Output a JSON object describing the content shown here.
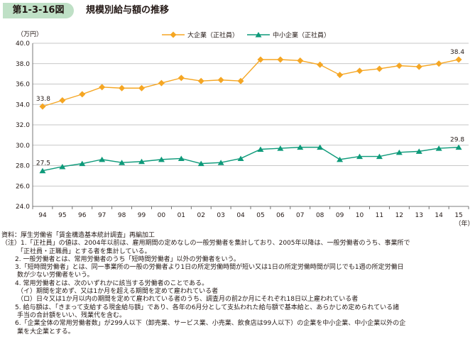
{
  "figure": {
    "number": "第1-3-16図",
    "title": "規模別給与額の推移"
  },
  "colors": {
    "large": "#f5a623",
    "small": "#0e9a7a",
    "grid": "#b5b5b5",
    "tag_bg": "#bfe0c6"
  },
  "chart_data": {
    "type": "line",
    "ylabel": "（万円）",
    "xlabel": "（年）",
    "ylim": [
      24.0,
      40.0
    ],
    "y_ticks": [
      "24.0",
      "26.0",
      "28.0",
      "30.0",
      "32.0",
      "34.0",
      "36.0",
      "38.0",
      "40.0"
    ],
    "categories": [
      "94",
      "95",
      "96",
      "97",
      "98",
      "99",
      "00",
      "01",
      "02",
      "03",
      "04",
      "05",
      "06",
      "07",
      "08",
      "09",
      "10",
      "11",
      "12",
      "13",
      "14",
      "15"
    ],
    "grid": true,
    "legend_position": "top",
    "series": [
      {
        "name": "大企業（正社員）",
        "marker": "diamond",
        "values": [
          33.8,
          34.4,
          35.0,
          35.7,
          35.6,
          35.6,
          36.1,
          36.6,
          36.3,
          36.4,
          36.3,
          38.4,
          38.4,
          38.3,
          37.9,
          36.9,
          37.3,
          37.5,
          37.8,
          37.7,
          38.0,
          38.4
        ],
        "labels": [
          {
            "index": 0,
            "text": "33.8"
          },
          {
            "index": 21,
            "text": "38.4"
          }
        ]
      },
      {
        "name": "中小企業（正社員）",
        "marker": "triangle",
        "values": [
          27.5,
          27.9,
          28.2,
          28.6,
          28.3,
          28.4,
          28.6,
          28.7,
          28.2,
          28.3,
          28.7,
          29.6,
          29.7,
          29.8,
          29.8,
          28.6,
          28.9,
          28.9,
          29.3,
          29.4,
          29.7,
          29.8
        ],
        "labels": [
          {
            "index": 0,
            "text": "27.5"
          },
          {
            "index": 21,
            "text": "29.8"
          }
        ]
      }
    ]
  },
  "notes": {
    "source": "資料：厚生労働省「賃金構造基本統計調査」再編加工",
    "n1a": "（注）1.「正社員」の値は、2004年以前は、雇用期間の定めなしの一般労働者を集計しており、2005年以降は、一般労働者のうち、事業所で",
    "n1b": "「正社員・正職員」とする者を集計している。",
    "n2": "2. 一般労働者とは、常用労働者のうち「短時間労働者」以外の労働者をいう。",
    "n3a": "3.「短時間労働者」とは、同一事業所の一般の労働者より1日の所定労働時間が短い又は1日の所定労働時間が同じでも1週の所定労働日",
    "n3b": "数が少ない労働者をいう。",
    "n4": "4. 常用労働者とは、次のいずれかに該当する労働者のことである。",
    "n4a": "（イ）期間を定めず、又は1か月を超える期間を定めて雇われている者",
    "n4b": "（ロ）日々又は1か月以内の期間を定めて雇われている者のうち、調査月の前2か月にそれぞれ18日以上雇われている者",
    "n5a": "5. 給与額は、「きまって支給する現金給与額」であり、各年の6月分として支払われた給与額で基本給と、あらかじめ定められている諸",
    "n5b": "手当の合計額をいい、残業代を含む。",
    "n6a": "6.「企業全体の常用労働者数」が299人以下（卸売業、サービス業、小売業、飲食店は99人以下）の企業を中小企業、中小企業以外の企",
    "n6b": "業を大企業とする。"
  }
}
